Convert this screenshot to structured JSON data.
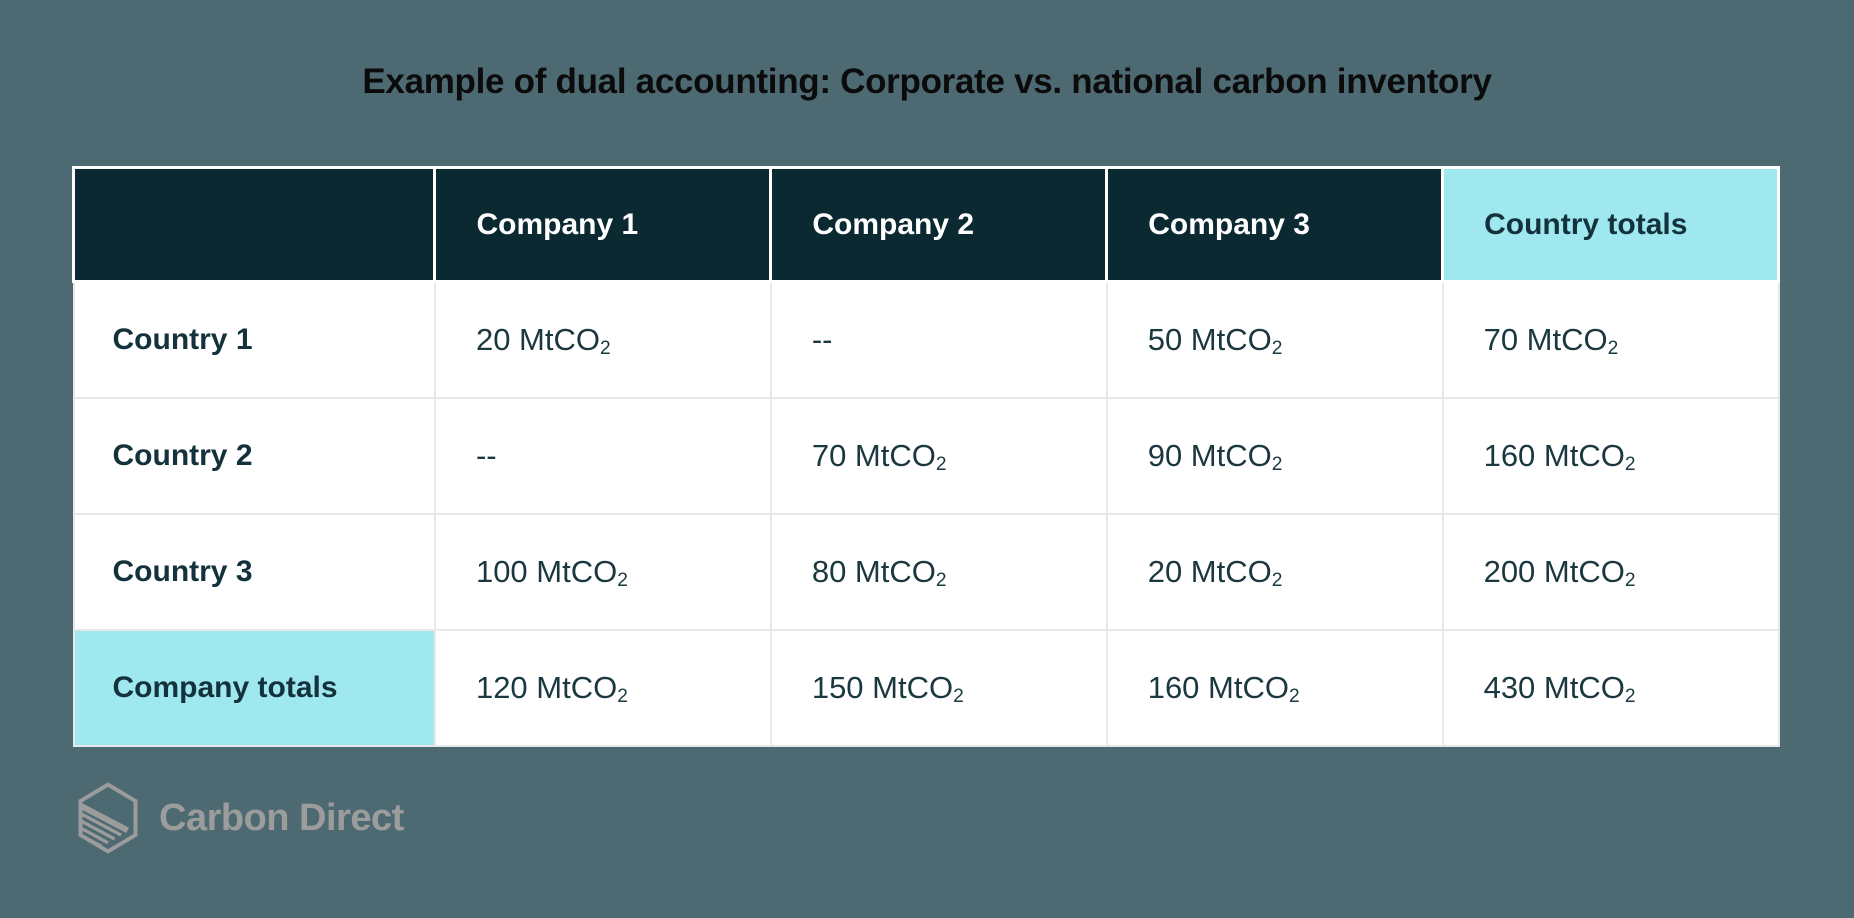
{
  "title": "Example of dual accounting: Corporate vs. national carbon inventory",
  "colors": {
    "background": "#4D6A73",
    "header_dark": "#0B2931",
    "accent_cyan": "#9FE8F0",
    "text_dark": "#14323B",
    "value_dark": "#1B3840",
    "body_border": "#E6E8EA",
    "logo_gray": "#9C9C9C",
    "title_black": "#0B0B0B"
  },
  "chart_data": {
    "type": "table",
    "title": "Example of dual accounting: Corporate vs. national carbon inventory",
    "columns": [
      "",
      "Company 1",
      "Company 2",
      "Company 3",
      "Country totals"
    ],
    "rows": [
      [
        "Country 1",
        "20 MtCO₂",
        "--",
        "50 MtCO₂",
        "70 MtCO₂"
      ],
      [
        "Country 2",
        "--",
        "70 MtCO₂",
        "90 MtCO₂",
        "160 MtCO₂"
      ],
      [
        "Country 3",
        "100 MtCO₂",
        "80 MtCO₂",
        "20 MtCO₂",
        "200 MtCO₂"
      ],
      [
        "Company totals",
        "120 MtCO₂",
        "150 MtCO₂",
        "160 MtCO₂",
        "430 MtCO₂"
      ]
    ],
    "unit": "MtCO2",
    "values": {
      "companies": [
        "Company 1",
        "Company 2",
        "Company 3"
      ],
      "countries": [
        "Country 1",
        "Country 2",
        "Country 3"
      ],
      "matrix_MtCO2": [
        [
          20,
          null,
          50
        ],
        [
          null,
          70,
          90
        ],
        [
          100,
          80,
          20
        ]
      ],
      "country_totals_MtCO2": [
        70,
        160,
        200
      ],
      "company_totals_MtCO2": [
        120,
        150,
        160
      ],
      "grand_total_MtCO2": 430
    },
    "layout_hints": {
      "highlight_column": "Country totals",
      "highlight_row": "Company totals",
      "highlight_color": "#9FE8F0",
      "header_fill": "#0B2931",
      "header_text_color": "#FFFFFF"
    }
  },
  "logo": {
    "name": "Carbon Direct",
    "icon": "hexagon-layers-icon"
  }
}
